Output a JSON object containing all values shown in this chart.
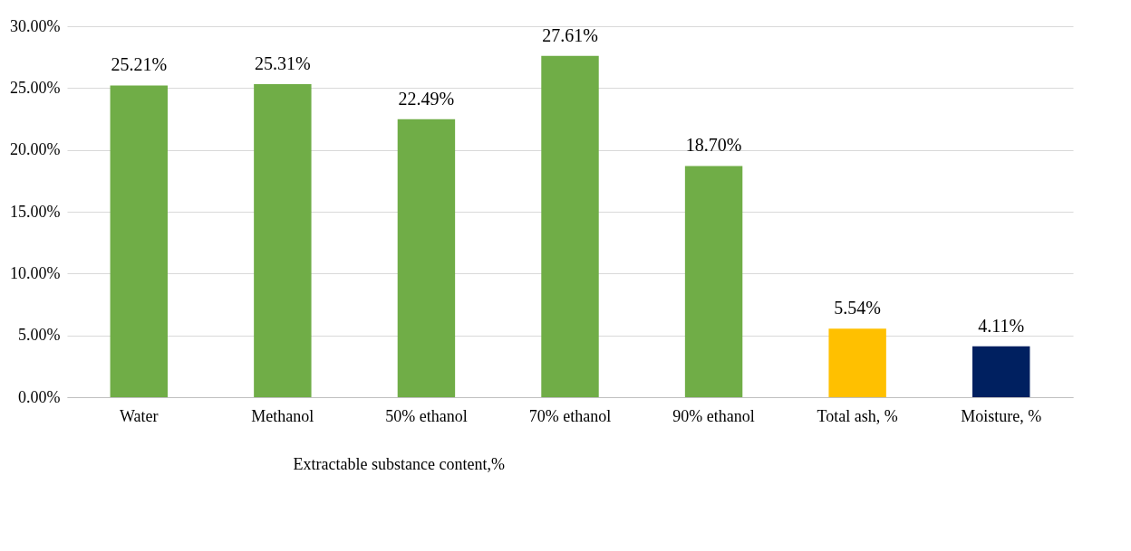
{
  "chart_data": {
    "type": "bar",
    "categories": [
      "Water",
      "Methanol",
      "50% ethanol",
      "70% ethanol",
      "90%  ethanol",
      "Total ash, %",
      "Moisture, %"
    ],
    "values": [
      25.21,
      25.31,
      22.49,
      27.61,
      18.7,
      5.54,
      4.11
    ],
    "colors": [
      "#70ad47",
      "#70ad47",
      "#70ad47",
      "#70ad47",
      "#70ad47",
      "#ffc000",
      "#002060"
    ],
    "value_labels": [
      "25.21%",
      "25.31%",
      "22.49%",
      "27.61%",
      "18.70%",
      "5.54%",
      "4.11%"
    ],
    "ylim": [
      0,
      30
    ],
    "yticks": [
      {
        "value": 0,
        "label": "0.00%"
      },
      {
        "value": 5,
        "label": "5.00%"
      },
      {
        "value": 10,
        "label": "10.00%"
      },
      {
        "value": 15,
        "label": "15.00%"
      },
      {
        "value": 20,
        "label": "20.00%"
      },
      {
        "value": 25,
        "label": "25.00%"
      },
      {
        "value": 30,
        "label": "30.00%"
      }
    ],
    "grid": "y",
    "annotations": [
      "Extractable substance content,%"
    ]
  }
}
